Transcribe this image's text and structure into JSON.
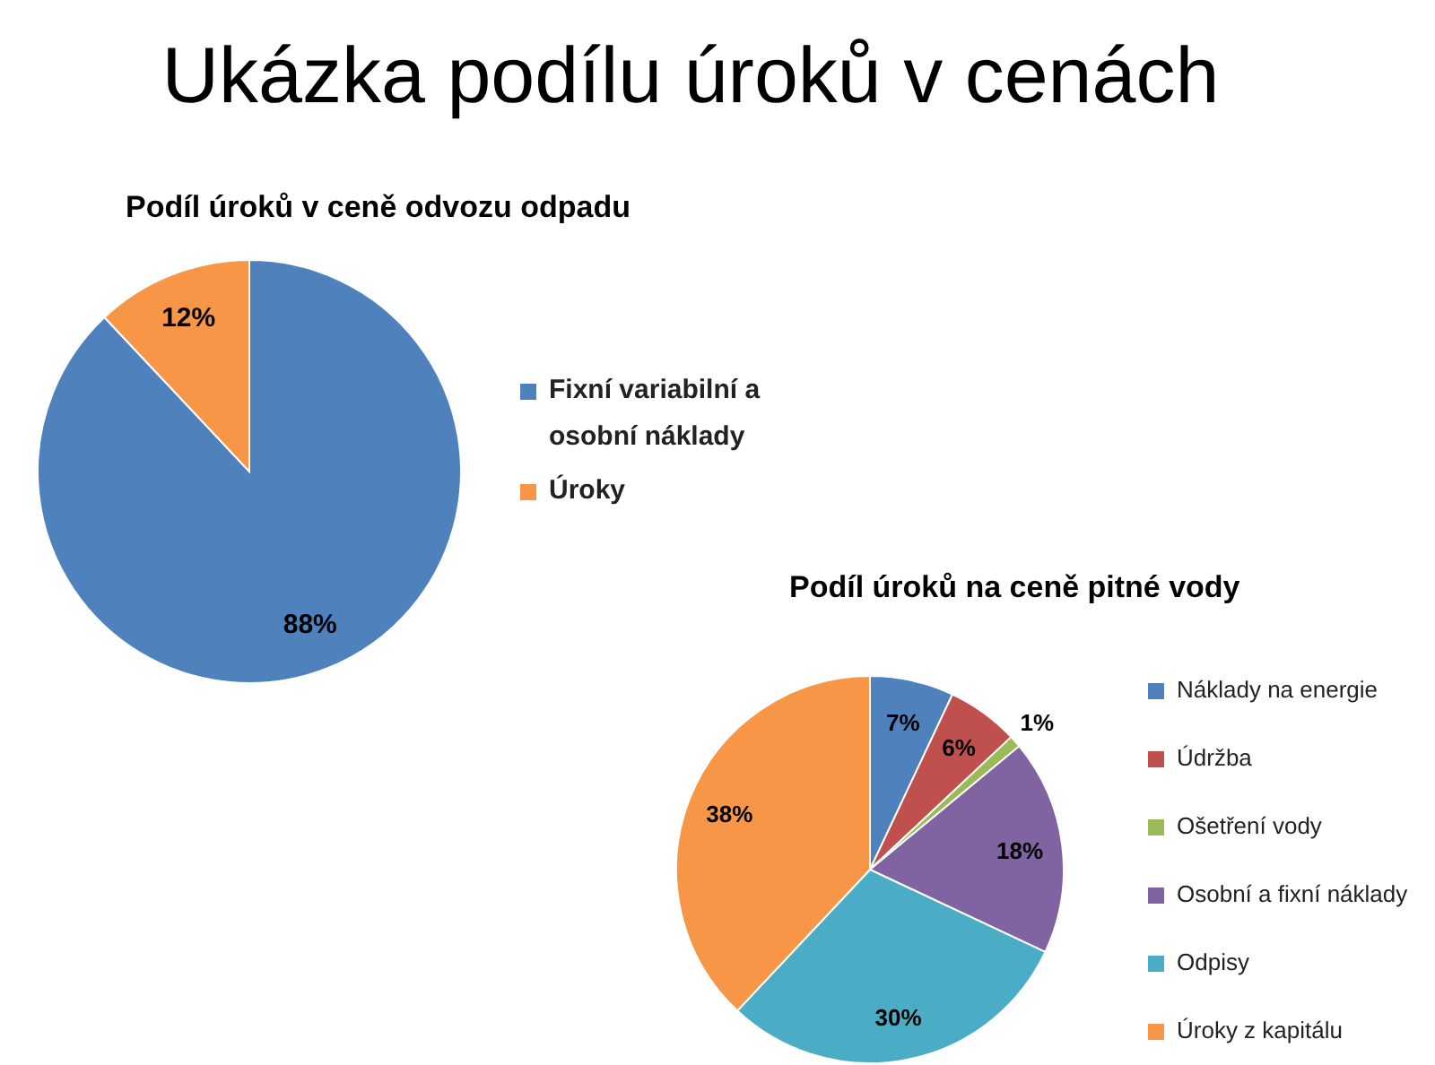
{
  "chart_data": [
    {
      "type": "pie",
      "title": "Ukázka podílu úroků v cenách",
      "subtitle": "Podíl úroků v ceně odvozu odpadu",
      "categories": [
        "Fixní variabilní a osobní náklady",
        "Úroky"
      ],
      "values": [
        88,
        12
      ],
      "colors": [
        "#4f81bd",
        "#f79646"
      ],
      "value_labels": [
        "88%",
        "12%"
      ],
      "legend": "right"
    },
    {
      "type": "pie",
      "title": "Podíl úroků na ceně pitné vody",
      "categories": [
        "Náklady na energie",
        "Údržba",
        "Ošetření vody",
        "Osobní a fixní náklady",
        "Odpisy",
        "Úroky z kapitálu"
      ],
      "values": [
        7,
        6,
        1,
        18,
        30,
        38
      ],
      "colors": [
        "#4f81bd",
        "#c0504d",
        "#9bbb59",
        "#8064a2",
        "#4bacc6",
        "#f79646"
      ],
      "value_labels": [
        "7%",
        "6%",
        "1%",
        "18%",
        "30%",
        "38%"
      ],
      "legend": "right"
    }
  ]
}
